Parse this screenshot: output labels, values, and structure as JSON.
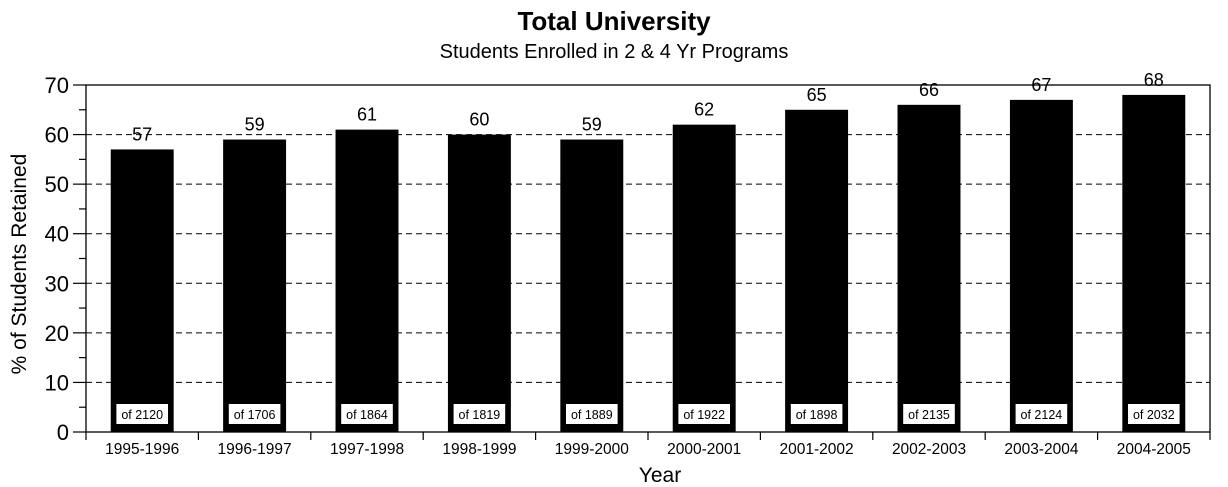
{
  "chart_data": {
    "type": "bar",
    "title": "Total University",
    "subtitle": "Students Enrolled in 2 & 4 Yr Programs",
    "xlabel": "Year",
    "ylabel": "% of Students Retained",
    "ylim": [
      0,
      70
    ],
    "yticks": [
      0,
      10,
      20,
      30,
      40,
      50,
      60,
      70
    ],
    "grid": true,
    "bar_color": "#000000",
    "categories": [
      "1995-1996",
      "1996-1997",
      "1997-1998",
      "1998-1999",
      "1999-2000",
      "2000-2001",
      "2001-2002",
      "2002-2003",
      "2003-2004",
      "2004-2005"
    ],
    "values": [
      57,
      59,
      61,
      60,
      59,
      62,
      65,
      66,
      67,
      68
    ],
    "bar_annotations": [
      "of 2120",
      "of 1706",
      "of 1864",
      "of 1819",
      "of 1889",
      "of 1922",
      "of 1898",
      "of 2135",
      "of  2124",
      "of  2032"
    ]
  }
}
